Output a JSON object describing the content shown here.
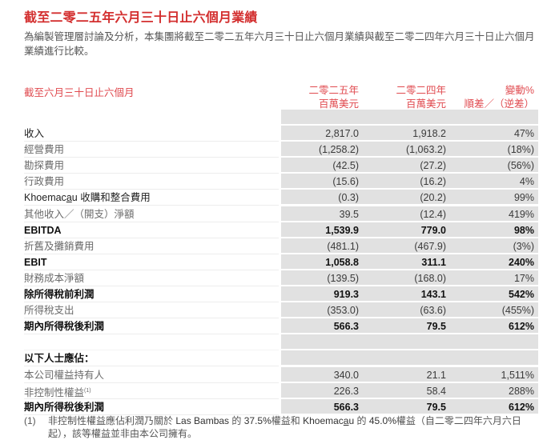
{
  "title": "截至二零二五年六月三十日止六個月業績",
  "intro": "為編製管理層討論及分析，本集團將截至二零二五年六月三十日止六個月業績與截至二零二四年六月三十日止六個月業績進行比較。",
  "table": {
    "header_left": "截至六月三十日止六個月",
    "columns": [
      {
        "line1": "二零二五年",
        "line2": "百萬美元"
      },
      {
        "line1": "二零二四年",
        "line2": "百萬美元"
      },
      {
        "line1": "變動%",
        "line2": "順差／（逆差）"
      }
    ],
    "rows": [
      {
        "label": "收入",
        "v2025": "2,817.0",
        "v2024": "1,918.2",
        "change": "47%",
        "style": "dark"
      },
      {
        "label": "經營費用",
        "v2025": "(1,258.2)",
        "v2024": "(1,063.2)",
        "change": "(18%)",
        "style": "normal"
      },
      {
        "label": "勘探費用",
        "v2025": "(42.5)",
        "v2024": "(27.2)",
        "change": "(56%)",
        "style": "normal"
      },
      {
        "label": "行政費用",
        "v2025": "(15.6)",
        "v2024": "(16.2)",
        "change": "4%",
        "style": "normal"
      },
      {
        "label_prefix": "Khoemac",
        "label_underlined": "a",
        "label_suffix": "u 收購和整合費用",
        "v2025": "(0.3)",
        "v2024": "(20.2)",
        "change": "99%",
        "style": "dark"
      },
      {
        "label": "其他收入／（開支）淨額",
        "v2025": "39.5",
        "v2024": "(12.4)",
        "change": "419%",
        "style": "normal"
      },
      {
        "label": "EBITDA",
        "v2025": "1,539.9",
        "v2024": "779.0",
        "change": "98%",
        "style": "bold"
      },
      {
        "label": "折舊及攤銷費用",
        "v2025": "(481.1)",
        "v2024": "(467.9)",
        "change": "(3%)",
        "style": "normal"
      },
      {
        "label": "EBIT",
        "v2025": "1,058.8",
        "v2024": "311.1",
        "change": "240%",
        "style": "bold"
      },
      {
        "label": "財務成本淨額",
        "v2025": "(139.5)",
        "v2024": "(168.0)",
        "change": "17%",
        "style": "normal"
      },
      {
        "label": "除所得稅前利潤",
        "v2025": "919.3",
        "v2024": "143.1",
        "change": "542%",
        "style": "bold"
      },
      {
        "label": "所得稅支出",
        "v2025": "(353.0)",
        "v2024": "(63.6)",
        "change": "(455%)",
        "style": "normal"
      },
      {
        "label": "期內所得稅後利潤",
        "v2025": "566.3",
        "v2024": "79.5",
        "change": "612%",
        "style": "bold"
      }
    ],
    "attributable_heading": "以下人士應佔：",
    "attributable_rows": [
      {
        "label": "本公司權益持有人",
        "v2025": "340.0",
        "v2024": "21.1",
        "change": "1,511%",
        "style": "normal"
      },
      {
        "label": "非控制性權益",
        "sup": "(1)",
        "v2025": "226.3",
        "v2024": "58.4",
        "change": "288%",
        "style": "normal"
      },
      {
        "label": "期內所得稅後利潤",
        "v2025": "566.3",
        "v2024": "79.5",
        "change": "612%",
        "style": "bold"
      }
    ]
  },
  "footnote": {
    "number": "(1)",
    "part1": "非控制性權益應佔利潤乃關於 ",
    "las_bambas": "Las Bambas",
    "part2": " 的 ",
    "pct1": "37.5%",
    "part3": "權益和 ",
    "khoe_prefix": "Khoemac",
    "khoe_underlined": "a",
    "khoe_suffix": "u",
    "part4": " 的 ",
    "pct2": "45.0%",
    "part5": "權益（自二零二四年六月六日起），該等權益並非由本公司擁有。"
  },
  "colors": {
    "title_red": "#d32f2f",
    "header_red": "#e04a4f",
    "grey_band": "#e1e1e1",
    "text_body": "#555555"
  }
}
